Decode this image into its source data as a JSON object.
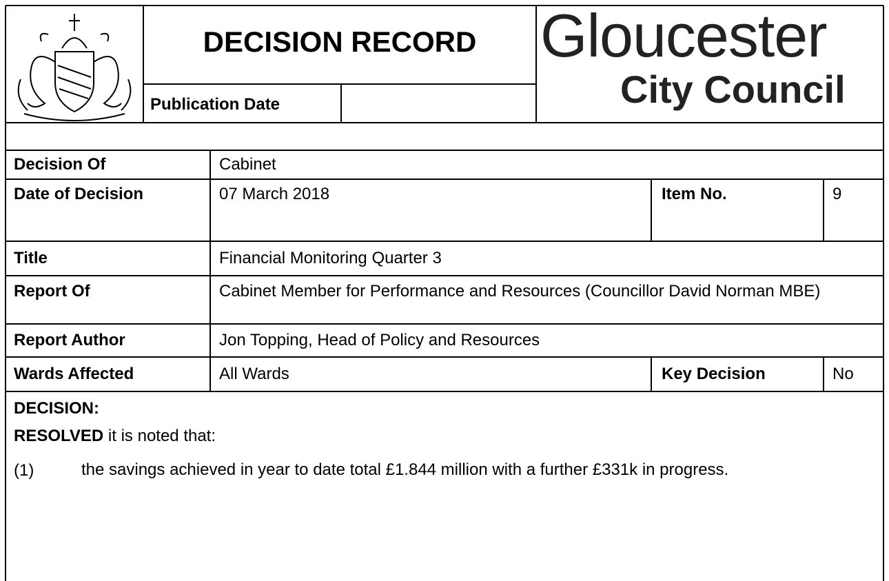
{
  "header": {
    "title": "DECISION RECORD",
    "publication_date_label": "Publication Date",
    "logo": {
      "line1": "Gloucester",
      "line2": "City Council"
    }
  },
  "rows": [
    {
      "label": "Decision Of",
      "value": "Cabinet"
    },
    {
      "label": "Date of Decision",
      "value": "07 March 2018",
      "extra_label": "Item No.",
      "extra_value": "9"
    },
    {
      "label": "Title",
      "value": "Financial Monitoring Quarter 3"
    },
    {
      "label": "Report Of",
      "value": "Cabinet Member for Performance and Resources (Councillor David Norman MBE)"
    },
    {
      "label": "Report Author",
      "value": "Jon Topping, Head of Policy and Resources"
    },
    {
      "label": "Wards Affected",
      "value": "All Wards",
      "extra_label": "Key Decision",
      "extra_value": "No"
    }
  ],
  "decision": {
    "heading": "DECISION:",
    "resolved_bold": "RESOLVED",
    "resolved_rest": "it is noted that:",
    "items": [
      {
        "number": "(1)",
        "text": "the savings achieved in year to date total £1.844 million with a further £331k in progress."
      }
    ]
  }
}
